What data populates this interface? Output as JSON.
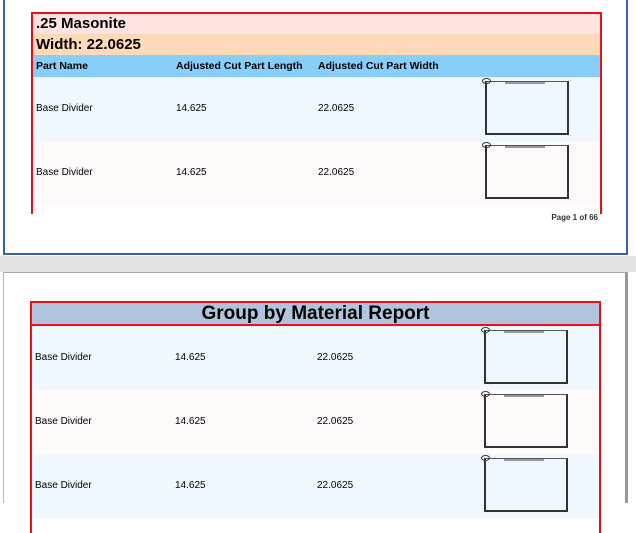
{
  "page1": {
    "material": ".25 Masonite",
    "width_label": "Width: 22.0625",
    "columns": [
      "Part Name",
      "Adjusted Cut Part Length",
      "Adjusted Cut Part Width"
    ],
    "rows": [
      {
        "name": "Base Divider",
        "length": "14.625",
        "width": "22.0625"
      },
      {
        "name": "Base Divider",
        "length": "14.625",
        "width": "22.0625"
      }
    ],
    "page_number": "Page 1 of 66"
  },
  "page2": {
    "title": "Group by Material Report",
    "rows": [
      {
        "name": "Base Divider",
        "length": "14.625",
        "width": "22.0625"
      },
      {
        "name": "Base Divider",
        "length": "14.625",
        "width": "22.0625"
      },
      {
        "name": "Base Divider",
        "length": "14.625",
        "width": "22.0625"
      }
    ]
  }
}
